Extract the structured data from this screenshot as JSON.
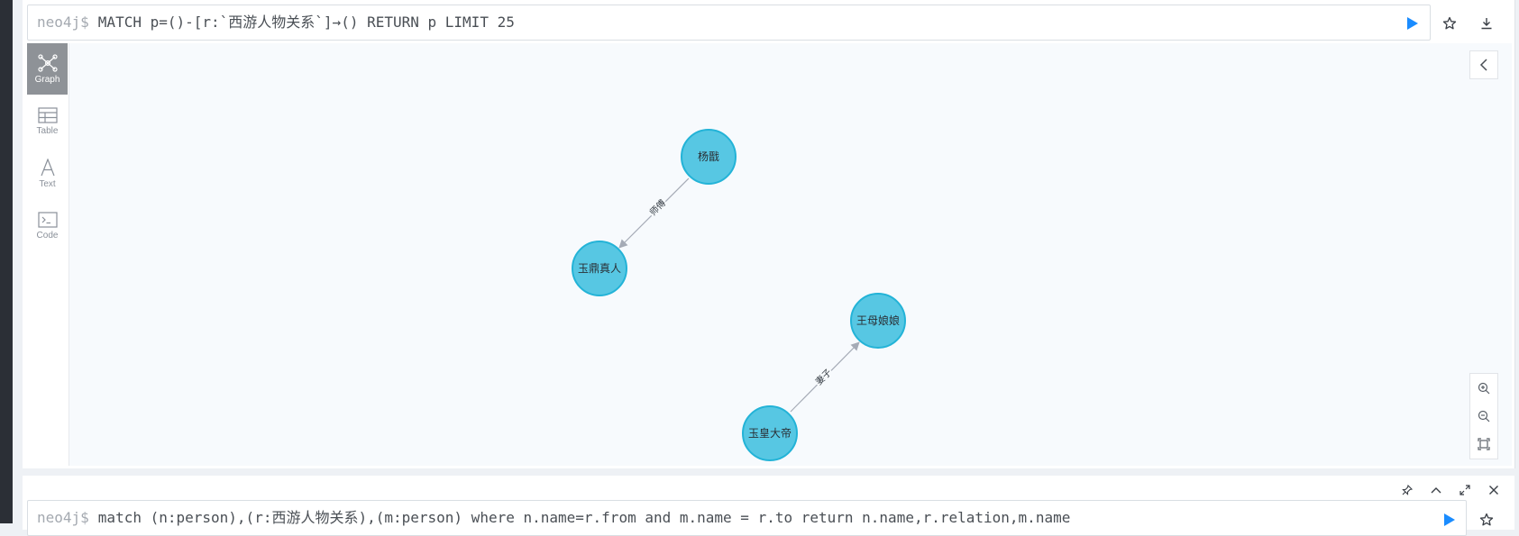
{
  "frame1": {
    "prompt": "neo4j$",
    "query": "MATCH p=()-[r:`西游人物关系`]→() RETURN p LIMIT 25"
  },
  "toolbar": {
    "run_icon": "play-icon",
    "favorite_icon": "star-icon",
    "download_icon": "download-icon"
  },
  "sidebar": {
    "tabs": [
      {
        "label": "Graph",
        "icon": "graph-icon",
        "active": true
      },
      {
        "label": "Table",
        "icon": "table-icon",
        "active": false
      },
      {
        "label": "Text",
        "icon": "text-icon",
        "active": false
      },
      {
        "label": "Code",
        "icon": "code-icon",
        "active": false
      }
    ]
  },
  "graph": {
    "node_color": "#57c7e3",
    "node_border": "#23b3d7",
    "nodes": [
      {
        "id": "n1",
        "label": "杨戬"
      },
      {
        "id": "n2",
        "label": "玉鼎真人"
      },
      {
        "id": "n3",
        "label": "王母娘娘"
      },
      {
        "id": "n4",
        "label": "玉皇大帝"
      }
    ],
    "relationships": [
      {
        "from": "n1",
        "to": "n2",
        "label": "师傅"
      },
      {
        "from": "n4",
        "to": "n3",
        "label": "妻子"
      }
    ]
  },
  "frame2": {
    "prompt": "neo4j$",
    "query": "match (n:person),(r:西游人物关系),(m:person) where n.name=r.from and m.name = r.to return n.name,r.relation,m.name"
  },
  "frame2_controls": [
    "pin-icon",
    "collapse-up-icon",
    "expand-icon",
    "close-icon"
  ],
  "colors": {
    "run_button": "#1a8cff",
    "active_tab": "#8e9297",
    "canvas_bg": "#f7fafd"
  }
}
